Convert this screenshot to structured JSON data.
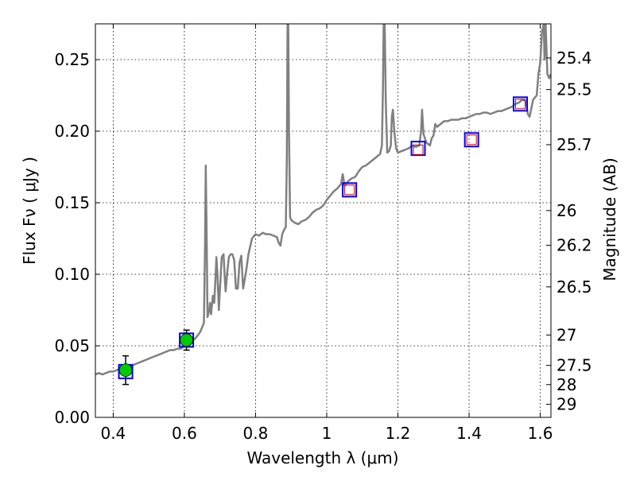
{
  "chart_data": {
    "type": "line",
    "title": "",
    "xlabel": "Wavelength  λ (μm)",
    "ylabel": "Flux  Fν  ( μJy )",
    "ylabel_right": "Magnitude (AB)",
    "xlim": [
      0.35,
      1.63
    ],
    "ylim": [
      0.0,
      0.275
    ],
    "grid": true,
    "x_ticks": [
      {
        "value": 0.4,
        "label": "0.4"
      },
      {
        "value": 0.6,
        "label": "0.6"
      },
      {
        "value": 0.8,
        "label": "0.8"
      },
      {
        "value": 1.0,
        "label": "1"
      },
      {
        "value": 1.2,
        "label": "1.2"
      },
      {
        "value": 1.4,
        "label": "1.4"
      },
      {
        "value": 1.6,
        "label": "1.6"
      }
    ],
    "y_ticks": [
      {
        "value": 0.0,
        "label": "0.00"
      },
      {
        "value": 0.05,
        "label": "0.05"
      },
      {
        "value": 0.1,
        "label": "0.10"
      },
      {
        "value": 0.15,
        "label": "0.15"
      },
      {
        "value": 0.2,
        "label": "0.20"
      },
      {
        "value": 0.25,
        "label": "0.25"
      }
    ],
    "right_ticks": [
      {
        "value": 25.4,
        "label": "25.4"
      },
      {
        "value": 25.5,
        "label": "25.5"
      },
      {
        "value": 25.7,
        "label": "25.7"
      },
      {
        "value": 26,
        "label": "26"
      },
      {
        "value": 26.2,
        "label": "26.2"
      },
      {
        "value": 26.5,
        "label": "26.5"
      },
      {
        "value": 27,
        "label": "27"
      },
      {
        "value": 27.5,
        "label": "27.5"
      },
      {
        "value": 28,
        "label": "28"
      },
      {
        "value": 29,
        "label": "29"
      }
    ],
    "colors": {
      "spectrum": "#808080",
      "observed_fill": "#00cc00",
      "model_box": "#0000ff",
      "model_inner": "#cc0000"
    },
    "series": [
      {
        "kind": "spectrum",
        "points": [
          [
            0.35,
            0.03
          ],
          [
            0.36,
            0.031
          ],
          [
            0.37,
            0.03
          ],
          [
            0.38,
            0.031
          ],
          [
            0.39,
            0.032
          ],
          [
            0.4,
            0.032
          ],
          [
            0.41,
            0.033
          ],
          [
            0.42,
            0.034
          ],
          [
            0.43,
            0.034
          ],
          [
            0.44,
            0.036
          ],
          [
            0.45,
            0.036
          ],
          [
            0.46,
            0.037
          ],
          [
            0.47,
            0.038
          ],
          [
            0.48,
            0.039
          ],
          [
            0.49,
            0.04
          ],
          [
            0.5,
            0.041
          ],
          [
            0.51,
            0.042
          ],
          [
            0.52,
            0.043
          ],
          [
            0.53,
            0.044
          ],
          [
            0.54,
            0.045
          ],
          [
            0.55,
            0.046
          ],
          [
            0.56,
            0.047
          ],
          [
            0.57,
            0.047
          ],
          [
            0.58,
            0.048
          ],
          [
            0.59,
            0.048
          ],
          [
            0.6,
            0.05
          ],
          [
            0.61,
            0.051
          ],
          [
            0.62,
            0.053
          ],
          [
            0.63,
            0.055
          ],
          [
            0.64,
            0.058
          ],
          [
            0.645,
            0.06
          ],
          [
            0.65,
            0.063
          ],
          [
            0.655,
            0.066
          ],
          [
            0.658,
            0.12
          ],
          [
            0.66,
            0.176
          ],
          [
            0.663,
            0.12
          ],
          [
            0.665,
            0.07
          ],
          [
            0.67,
            0.075
          ],
          [
            0.672,
            0.08
          ],
          [
            0.675,
            0.072
          ],
          [
            0.68,
            0.085
          ],
          [
            0.684,
            0.08
          ],
          [
            0.688,
            0.1
          ],
          [
            0.69,
            0.112
          ],
          [
            0.693,
            0.1
          ],
          [
            0.697,
            0.075
          ],
          [
            0.7,
            0.09
          ],
          [
            0.705,
            0.112
          ],
          [
            0.71,
            0.114
          ],
          [
            0.713,
            0.1
          ],
          [
            0.716,
            0.088
          ],
          [
            0.72,
            0.1
          ],
          [
            0.725,
            0.112
          ],
          [
            0.73,
            0.114
          ],
          [
            0.735,
            0.114
          ],
          [
            0.74,
            0.11
          ],
          [
            0.745,
            0.09
          ],
          [
            0.75,
            0.09
          ],
          [
            0.755,
            0.108
          ],
          [
            0.76,
            0.113
          ],
          [
            0.765,
            0.09
          ],
          [
            0.77,
            0.097
          ],
          [
            0.775,
            0.105
          ],
          [
            0.78,
            0.114
          ],
          [
            0.79,
            0.125
          ],
          [
            0.8,
            0.128
          ],
          [
            0.81,
            0.127
          ],
          [
            0.82,
            0.129
          ],
          [
            0.83,
            0.128
          ],
          [
            0.84,
            0.128
          ],
          [
            0.85,
            0.127
          ],
          [
            0.86,
            0.126
          ],
          [
            0.865,
            0.122
          ],
          [
            0.87,
            0.12
          ],
          [
            0.875,
            0.128
          ],
          [
            0.88,
            0.131
          ],
          [
            0.885,
            0.133
          ],
          [
            0.888,
            0.18
          ],
          [
            0.89,
            0.275
          ],
          [
            0.892,
            0.275
          ],
          [
            0.894,
            0.2
          ],
          [
            0.897,
            0.14
          ],
          [
            0.9,
            0.138
          ],
          [
            0.91,
            0.136
          ],
          [
            0.92,
            0.135
          ],
          [
            0.93,
            0.137
          ],
          [
            0.94,
            0.138
          ],
          [
            0.95,
            0.14
          ],
          [
            0.96,
            0.143
          ],
          [
            0.97,
            0.145
          ],
          [
            0.98,
            0.146
          ],
          [
            0.99,
            0.148
          ],
          [
            1.0,
            0.152
          ],
          [
            1.01,
            0.155
          ],
          [
            1.02,
            0.158
          ],
          [
            1.03,
            0.16
          ],
          [
            1.04,
            0.163
          ],
          [
            1.045,
            0.17
          ],
          [
            1.05,
            0.162
          ],
          [
            1.06,
            0.165
          ],
          [
            1.07,
            0.167
          ],
          [
            1.08,
            0.168
          ],
          [
            1.09,
            0.172
          ],
          [
            1.1,
            0.175
          ],
          [
            1.11,
            0.176
          ],
          [
            1.12,
            0.178
          ],
          [
            1.13,
            0.18
          ],
          [
            1.14,
            0.182
          ],
          [
            1.15,
            0.184
          ],
          [
            1.155,
            0.19
          ],
          [
            1.158,
            0.23
          ],
          [
            1.16,
            0.275
          ],
          [
            1.163,
            0.275
          ],
          [
            1.166,
            0.22
          ],
          [
            1.17,
            0.185
          ],
          [
            1.175,
            0.186
          ],
          [
            1.18,
            0.19
          ],
          [
            1.183,
            0.21
          ],
          [
            1.186,
            0.215
          ],
          [
            1.19,
            0.2
          ],
          [
            1.195,
            0.188
          ],
          [
            1.2,
            0.185
          ],
          [
            1.21,
            0.186
          ],
          [
            1.22,
            0.187
          ],
          [
            1.23,
            0.188
          ],
          [
            1.24,
            0.19
          ],
          [
            1.25,
            0.189
          ],
          [
            1.26,
            0.19
          ],
          [
            1.265,
            0.2
          ],
          [
            1.268,
            0.215
          ],
          [
            1.272,
            0.198
          ],
          [
            1.28,
            0.192
          ],
          [
            1.29,
            0.19
          ],
          [
            1.295,
            0.195
          ],
          [
            1.3,
            0.197
          ],
          [
            1.305,
            0.205
          ],
          [
            1.31,
            0.203
          ],
          [
            1.32,
            0.205
          ],
          [
            1.33,
            0.207
          ],
          [
            1.34,
            0.207
          ],
          [
            1.35,
            0.208
          ],
          [
            1.36,
            0.208
          ],
          [
            1.37,
            0.208
          ],
          [
            1.38,
            0.209
          ],
          [
            1.39,
            0.209
          ],
          [
            1.4,
            0.21
          ],
          [
            1.41,
            0.211
          ],
          [
            1.42,
            0.212
          ],
          [
            1.43,
            0.212
          ],
          [
            1.44,
            0.213
          ],
          [
            1.45,
            0.213
          ],
          [
            1.46,
            0.212
          ],
          [
            1.47,
            0.213
          ],
          [
            1.48,
            0.214
          ],
          [
            1.49,
            0.214
          ],
          [
            1.5,
            0.215
          ],
          [
            1.51,
            0.216
          ],
          [
            1.52,
            0.217
          ],
          [
            1.53,
            0.219
          ],
          [
            1.54,
            0.22
          ],
          [
            1.55,
            0.222
          ],
          [
            1.56,
            0.221
          ],
          [
            1.565,
            0.212
          ],
          [
            1.57,
            0.21
          ],
          [
            1.575,
            0.216
          ],
          [
            1.58,
            0.222
          ],
          [
            1.59,
            0.225
          ],
          [
            1.595,
            0.24
          ],
          [
            1.6,
            0.248
          ],
          [
            1.605,
            0.27
          ],
          [
            1.61,
            0.275
          ],
          [
            1.612,
            0.25
          ],
          [
            1.615,
            0.275
          ],
          [
            1.62,
            0.24
          ],
          [
            1.625,
            0.237
          ],
          [
            1.63,
            0.24
          ]
        ]
      },
      {
        "kind": "observed",
        "points": [
          {
            "x": 0.435,
            "y": 0.033,
            "err": 0.01
          },
          {
            "x": 0.606,
            "y": 0.054,
            "err": 0.007
          }
        ]
      },
      {
        "kind": "model",
        "points": [
          {
            "x": 0.435,
            "y": 0.032
          },
          {
            "x": 0.606,
            "y": 0.054
          },
          {
            "x": 1.064,
            "y": 0.159
          },
          {
            "x": 1.257,
            "y": 0.188
          },
          {
            "x": 1.407,
            "y": 0.194
          },
          {
            "x": 1.544,
            "y": 0.219
          }
        ]
      },
      {
        "kind": "model-inner",
        "points": [
          {
            "x": 1.064,
            "y": 0.159
          },
          {
            "x": 1.257,
            "y": 0.187
          },
          {
            "x": 1.407,
            "y": 0.194
          },
          {
            "x": 1.544,
            "y": 0.219
          }
        ]
      }
    ]
  }
}
